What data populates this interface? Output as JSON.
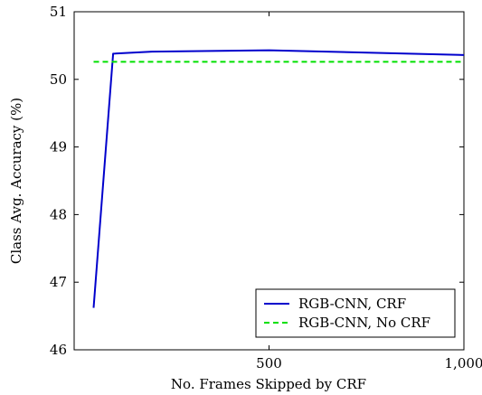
{
  "chart_data": {
    "type": "line",
    "title": "",
    "xlabel": "No. Frames Skipped by CRF",
    "ylabel": "Class Avg. Accuracy (%)",
    "xlim": [
      0,
      1000
    ],
    "ylim": [
      46,
      51
    ],
    "xticks": [
      500,
      1000
    ],
    "xtick_labels": [
      "500",
      "1,000"
    ],
    "yticks": [
      46,
      47,
      48,
      49,
      50,
      51
    ],
    "ytick_labels": [
      "46",
      "47",
      "48",
      "49",
      "50",
      "51"
    ],
    "grid": false,
    "legend_position": "bottom-right",
    "series": [
      {
        "name": "RGB-CNN, CRF",
        "color": "#0000cc",
        "style": "solid",
        "x": [
          50,
          100,
          200,
          500,
          1000
        ],
        "y": [
          46.62,
          50.38,
          50.41,
          50.43,
          50.36
        ]
      },
      {
        "name": "RGB-CNN, No CRF",
        "color": "#00e000",
        "style": "dashed",
        "x": [
          50,
          1000
        ],
        "y": [
          50.26,
          50.26
        ]
      }
    ]
  }
}
